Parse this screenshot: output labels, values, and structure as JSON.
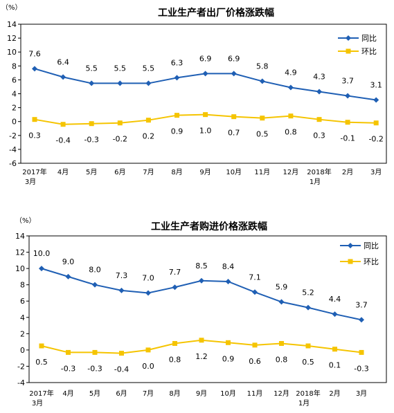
{
  "chart_data": [
    {
      "type": "line",
      "title": "工业生产者出厂价格涨跌幅",
      "unit_label": "（%）",
      "categories": [
        [
          "2017年",
          "3月"
        ],
        [
          "4月"
        ],
        [
          "5月"
        ],
        [
          "6月"
        ],
        [
          "7月"
        ],
        [
          "8月"
        ],
        [
          "9月"
        ],
        [
          "10月"
        ],
        [
          "11月"
        ],
        [
          "12月"
        ],
        [
          "2018年",
          "1月"
        ],
        [
          "2月"
        ],
        [
          "3月"
        ]
      ],
      "yticks": [
        -6,
        -4,
        -2,
        0,
        2,
        4,
        6,
        8,
        10,
        12,
        14
      ],
      "ylim": [
        -6,
        14
      ],
      "legend_position": "top-right",
      "grid": false,
      "series": [
        {
          "name": "同比",
          "color": "#1f5fb4",
          "marker": "diamond",
          "values": [
            7.6,
            6.4,
            5.5,
            5.5,
            5.5,
            6.3,
            6.9,
            6.9,
            5.8,
            4.9,
            4.3,
            3.7,
            3.1
          ],
          "labels": [
            "7.6",
            "6.4",
            "5.5",
            "5.5",
            "5.5",
            "6.3",
            "6.9",
            "6.9",
            "5.8",
            "4.9",
            "4.3",
            "3.7",
            "3.1"
          ]
        },
        {
          "name": "环比",
          "color": "#f5c400",
          "marker": "square",
          "values": [
            0.3,
            -0.4,
            -0.3,
            -0.2,
            0.2,
            0.9,
            1.0,
            0.7,
            0.5,
            0.8,
            0.3,
            -0.1,
            -0.2
          ],
          "labels": [
            "0.3",
            "-0.4",
            "-0.3",
            "-0.2",
            "0.2",
            "0.9",
            "1.0",
            "0.7",
            "0.5",
            "0.8",
            "0.3",
            "-0.1",
            "-0.2"
          ]
        }
      ]
    },
    {
      "type": "line",
      "title": "工业生产者购进价格涨跌幅",
      "unit_label": "（%）",
      "categories": [
        [
          "2017年",
          "3月"
        ],
        [
          "4月"
        ],
        [
          "5月"
        ],
        [
          "6月"
        ],
        [
          "7月"
        ],
        [
          "8月"
        ],
        [
          "9月"
        ],
        [
          "10月"
        ],
        [
          "11月"
        ],
        [
          "12月"
        ],
        [
          "2018年",
          "1月"
        ],
        [
          "2月"
        ],
        [
          "3月"
        ]
      ],
      "yticks": [
        -4,
        -2,
        0,
        2,
        4,
        6,
        8,
        10,
        12,
        14
      ],
      "ylim": [
        -4,
        14
      ],
      "legend_position": "top-right",
      "grid": false,
      "series": [
        {
          "name": "同比",
          "color": "#1f5fb4",
          "marker": "diamond",
          "values": [
            10.0,
            9.0,
            8.0,
            7.3,
            7.0,
            7.7,
            8.5,
            8.4,
            7.1,
            5.9,
            5.2,
            4.4,
            3.7
          ],
          "labels": [
            "10.0",
            "9.0",
            "8.0",
            "7.3",
            "7.0",
            "7.7",
            "8.5",
            "8.4",
            "7.1",
            "5.9",
            "5.2",
            "4.4",
            "3.7"
          ]
        },
        {
          "name": "环比",
          "color": "#f5c400",
          "marker": "square",
          "values": [
            0.5,
            -0.3,
            -0.3,
            -0.4,
            0.0,
            0.8,
            1.2,
            0.9,
            0.6,
            0.8,
            0.5,
            0.1,
            -0.3
          ],
          "labels": [
            "0.5",
            "-0.3",
            "-0.3",
            "-0.4",
            "0.0",
            "0.8",
            "1.2",
            "0.9",
            "0.6",
            "0.8",
            "0.5",
            "0.1",
            "-0.3"
          ]
        }
      ]
    }
  ]
}
